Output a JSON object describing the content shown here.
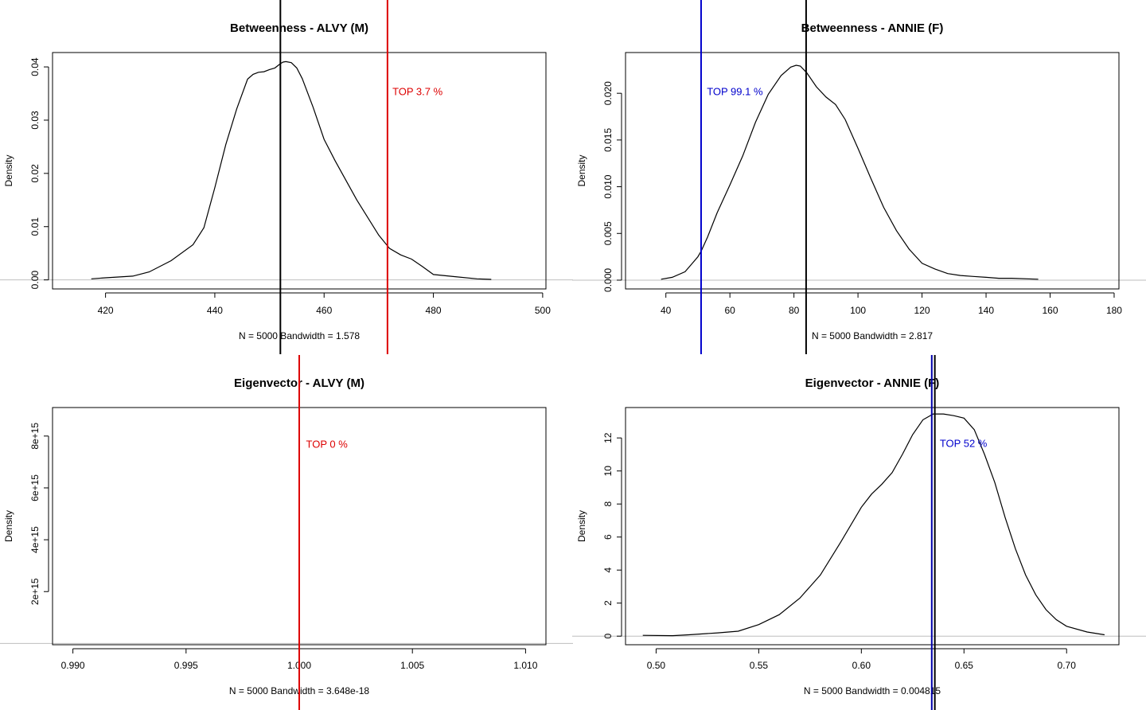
{
  "chart_data": [
    {
      "type": "line",
      "title": "Betweenness - ALVY (M)",
      "ylabel": "Density",
      "xlabel": "N = 5000   Bandwidth = 1.578",
      "xlim": [
        410.3,
        500.6
      ],
      "ylim": [
        -0.0017,
        0.0427
      ],
      "xticks": [
        "420",
        "440",
        "460",
        "480",
        "500"
      ],
      "xtick_values": [
        420,
        440,
        460,
        480,
        500
      ],
      "yticks": [
        "0.00",
        "0.01",
        "0.02",
        "0.03",
        "0.04"
      ],
      "ytick_values": [
        0,
        0.01,
        0.02,
        0.03,
        0.04
      ],
      "grid": false,
      "series": [
        {
          "color": "#000000",
          "x": [
            417.4,
            420,
            425,
            428,
            432,
            436,
            438,
            440,
            442,
            444,
            446,
            447,
            448,
            449,
            450,
            451,
            452,
            452.5,
            453,
            454,
            455,
            456,
            458,
            460,
            462,
            466,
            470,
            472,
            474,
            476,
            478,
            480,
            484,
            488,
            490.6
          ],
          "y": [
            0.0002,
            0.0004,
            0.0007,
            0.0015,
            0.0036,
            0.0066,
            0.0098,
            0.0173,
            0.0254,
            0.0321,
            0.0377,
            0.0386,
            0.039,
            0.0391,
            0.0395,
            0.0398,
            0.0406,
            0.0409,
            0.041,
            0.0408,
            0.0398,
            0.0378,
            0.0324,
            0.0264,
            0.0224,
            0.015,
            0.0084,
            0.0059,
            0.0047,
            0.0039,
            0.0025,
            0.001,
            0.0006,
            0.0002,
            0.0001
          ]
        }
      ],
      "vlines": [
        {
          "x": 452,
          "color": "#000000"
        },
        {
          "x": 471.6,
          "color": "#dd0000"
        }
      ],
      "annotations": [
        {
          "text": "TOP 3.7 %",
          "x": 472.5,
          "y": 0.0347,
          "color": "#dd0000"
        }
      ]
    },
    {
      "type": "line",
      "title": "Betweenness - ANNIE (F)",
      "ylabel": "Density",
      "xlabel": "N = 5000   Bandwidth = 2.817",
      "xlim": [
        27.4,
        181.5
      ],
      "ylim": [
        -0.00094,
        0.02436
      ],
      "xticks": [
        "40",
        "60",
        "80",
        "100",
        "120",
        "140",
        "160",
        "180"
      ],
      "xtick_values": [
        40,
        60,
        80,
        100,
        120,
        140,
        160,
        180
      ],
      "yticks": [
        "0.000",
        "0.005",
        "0.010",
        "0.015",
        "0.020"
      ],
      "ytick_values": [
        0,
        0.005,
        0.01,
        0.015,
        0.02
      ],
      "grid": false,
      "series": [
        {
          "color": "#000000",
          "x": [
            38.5,
            42,
            46,
            48,
            50,
            51,
            53,
            56,
            60,
            64,
            68,
            72,
            76,
            79,
            80.7,
            82,
            84,
            87,
            90,
            93,
            96,
            100,
            104,
            108,
            112,
            116,
            120,
            124,
            128,
            132,
            136,
            140,
            144,
            148,
            156.3
          ],
          "y": [
            0.0001,
            0.0003,
            0.0009,
            0.0017,
            0.0025,
            0.0031,
            0.0046,
            0.0072,
            0.0102,
            0.0133,
            0.0169,
            0.0199,
            0.0219,
            0.0228,
            0.023,
            0.0229,
            0.0222,
            0.0207,
            0.0196,
            0.0188,
            0.0172,
            0.0141,
            0.0109,
            0.0078,
            0.0053,
            0.0033,
            0.0018,
            0.0012,
            0.0007,
            0.0005,
            0.0004,
            0.0003,
            0.0002,
            0.0002,
            0.0001
          ]
        }
      ],
      "vlines": [
        {
          "x": 83.8,
          "color": "#000000"
        },
        {
          "x": 51,
          "color": "#0000cc"
        }
      ],
      "annotations": [
        {
          "text": "TOP 99.1 %",
          "x": 52.8,
          "y": 0.0198,
          "color": "#0000cc"
        }
      ]
    },
    {
      "type": "line",
      "title": "Eigenvector - ALVY (M)",
      "ylabel": "Density",
      "xlabel": "N = 5000   Bandwidth = 3.648e-18",
      "xlim": [
        0.9891,
        1.0109
      ],
      "ylim": [
        -50000000000000.0,
        9100000000000000.0
      ],
      "xticks": [
        "0.990",
        "0.995",
        "1.000",
        "1.005",
        "1.010"
      ],
      "xtick_values": [
        0.99,
        0.995,
        1.0,
        1.005,
        1.01
      ],
      "yticks": [
        "2e+15",
        "4e+15",
        "6e+15",
        "8e+15"
      ],
      "ytick_values": [
        2000000000000000.0,
        4000000000000000.0,
        6000000000000000.0,
        8000000000000000.0
      ],
      "grid": false,
      "series": [],
      "vlines": [
        {
          "x": 1.0,
          "color": "#dd0000"
        }
      ],
      "annotations": [
        {
          "text": "TOP 0 %",
          "x": 1.0003,
          "y": 7550000000000000.0,
          "color": "#dd0000"
        }
      ]
    },
    {
      "type": "line",
      "title": "Eigenvector - ANNIE (F)",
      "ylabel": "Density",
      "xlabel": "N = 5000   Bandwidth = 0.004815",
      "xlim": [
        0.4851,
        0.7255
      ],
      "ylim": [
        -0.52,
        13.84
      ],
      "xticks": [
        "0.50",
        "0.55",
        "0.60",
        "0.65",
        "0.70"
      ],
      "xtick_values": [
        0.5,
        0.55,
        0.6,
        0.65,
        0.7
      ],
      "yticks": [
        "0",
        "2",
        "4",
        "6",
        "8",
        "10",
        "12"
      ],
      "ytick_values": [
        0,
        2,
        4,
        6,
        8,
        10,
        12
      ],
      "grid": false,
      "series": [
        {
          "color": "#000000",
          "x": [
            0.4935,
            0.508,
            0.516,
            0.53,
            0.54,
            0.55,
            0.56,
            0.57,
            0.58,
            0.59,
            0.6,
            0.605,
            0.61,
            0.615,
            0.62,
            0.625,
            0.63,
            0.635,
            0.64,
            0.645,
            0.65,
            0.655,
            0.66,
            0.665,
            0.67,
            0.675,
            0.68,
            0.685,
            0.69,
            0.695,
            0.7,
            0.71,
            0.7185
          ],
          "y": [
            0.05,
            0.03,
            0.08,
            0.2,
            0.3,
            0.7,
            1.3,
            2.3,
            3.7,
            5.7,
            7.8,
            8.6,
            9.2,
            9.9,
            11.0,
            12.2,
            13.1,
            13.45,
            13.45,
            13.35,
            13.2,
            12.5,
            11.0,
            9.3,
            7.2,
            5.3,
            3.7,
            2.5,
            1.6,
            1.0,
            0.6,
            0.25,
            0.08
          ]
        }
      ],
      "vlines": [
        {
          "x": 0.6358,
          "color": "#000000"
        },
        {
          "x": 0.6343,
          "color": "#0000aa"
        }
      ],
      "annotations": [
        {
          "text": "TOP 52 %",
          "x": 0.6382,
          "y": 11.45,
          "color": "#0000cc"
        }
      ]
    }
  ]
}
